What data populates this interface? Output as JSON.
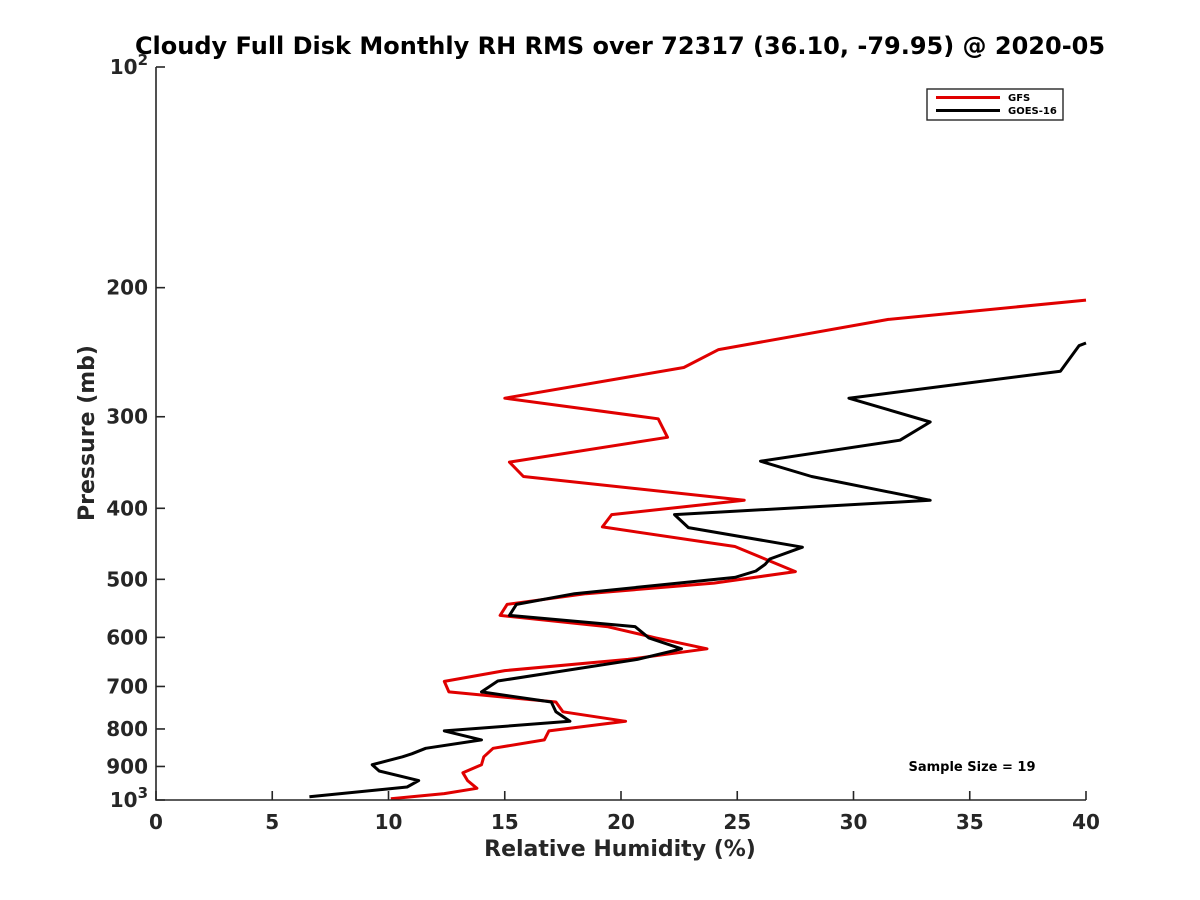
{
  "chart_data": {
    "type": "line",
    "title": "Cloudy Full Disk Monthly RH RMS over 72317 (36.10, -79.95) @ 2020-05",
    "xlabel": "Relative Humidity (%)",
    "ylabel": "Pressure (mb)",
    "xlim": [
      0,
      40
    ],
    "ylim": [
      100,
      1000
    ],
    "yscale": "log",
    "y_reversed": true,
    "x_ticks": [
      "0",
      "5",
      "10",
      "15",
      "20",
      "25",
      "30",
      "35",
      "40"
    ],
    "y_ticks": [
      {
        "value": 100,
        "base": "10",
        "exp": "2"
      },
      {
        "value": 200,
        "label": "200"
      },
      {
        "value": 300,
        "label": "300"
      },
      {
        "value": 400,
        "label": "400"
      },
      {
        "value": 500,
        "label": "500"
      },
      {
        "value": 600,
        "label": "600"
      },
      {
        "value": 700,
        "label": "700"
      },
      {
        "value": 800,
        "label": "800"
      },
      {
        "value": 900,
        "label": "900"
      },
      {
        "value": 1000,
        "base": "10",
        "exp": "3"
      }
    ],
    "legend_position": "top-right",
    "annotation": "Sample Size = 19",
    "series": [
      {
        "name": "GFS",
        "color": "#e00000",
        "points": [
          [
            40,
            208
          ],
          [
            31.5,
            221
          ],
          [
            24.2,
            243
          ],
          [
            22.7,
            257
          ],
          [
            15.0,
            283
          ],
          [
            21.6,
            302
          ],
          [
            22.0,
            320
          ],
          [
            15.2,
            346
          ],
          [
            15.8,
            362
          ],
          [
            25.3,
            390
          ],
          [
            19.6,
            408
          ],
          [
            19.2,
            424
          ],
          [
            24.9,
            451
          ],
          [
            26.4,
            472
          ],
          [
            27.5,
            488
          ],
          [
            24.0,
            506
          ],
          [
            18.5,
            523
          ],
          [
            15.1,
            541
          ],
          [
            14.8,
            560
          ],
          [
            19.4,
            580
          ],
          [
            21.5,
            601
          ],
          [
            23.7,
            622
          ],
          [
            20.3,
            643
          ],
          [
            15.0,
            666
          ],
          [
            12.4,
            689
          ],
          [
            12.6,
            712
          ],
          [
            17.2,
            735
          ],
          [
            17.5,
            758
          ],
          [
            20.2,
            781
          ],
          [
            16.9,
            805
          ],
          [
            16.7,
            828
          ],
          [
            14.5,
            850
          ],
          [
            14.1,
            873
          ],
          [
            14.0,
            895
          ],
          [
            13.2,
            918
          ],
          [
            13.4,
            941
          ],
          [
            13.8,
            964
          ],
          [
            12.4,
            980
          ],
          [
            10.1,
            996
          ]
        ]
      },
      {
        "name": "GOES-16",
        "color": "#000000",
        "points": [
          [
            40,
            238
          ],
          [
            39.7,
            240
          ],
          [
            38.9,
            260
          ],
          [
            29.8,
            283
          ],
          [
            33.3,
            305
          ],
          [
            32.0,
            323
          ],
          [
            26.0,
            345
          ],
          [
            28.2,
            362
          ],
          [
            33.3,
            390
          ],
          [
            22.3,
            408
          ],
          [
            22.9,
            425
          ],
          [
            27.8,
            452
          ],
          [
            26.4,
            469
          ],
          [
            26.2,
            477
          ],
          [
            25.8,
            487
          ],
          [
            24.9,
            497
          ],
          [
            18.0,
            523
          ],
          [
            15.5,
            541
          ],
          [
            15.2,
            560
          ],
          [
            20.6,
            580
          ],
          [
            21.2,
            601
          ],
          [
            22.6,
            622
          ],
          [
            20.7,
            643
          ],
          [
            14.7,
            688
          ],
          [
            14.0,
            712
          ],
          [
            17.0,
            735
          ],
          [
            17.2,
            758
          ],
          [
            17.8,
            781
          ],
          [
            12.4,
            805
          ],
          [
            14.0,
            828
          ],
          [
            11.6,
            850
          ],
          [
            11.0,
            865
          ],
          [
            10.6,
            873
          ],
          [
            9.3,
            895
          ],
          [
            9.6,
            913
          ],
          [
            11.3,
            941
          ],
          [
            10.8,
            960
          ],
          [
            6.6,
            990
          ]
        ]
      }
    ]
  }
}
